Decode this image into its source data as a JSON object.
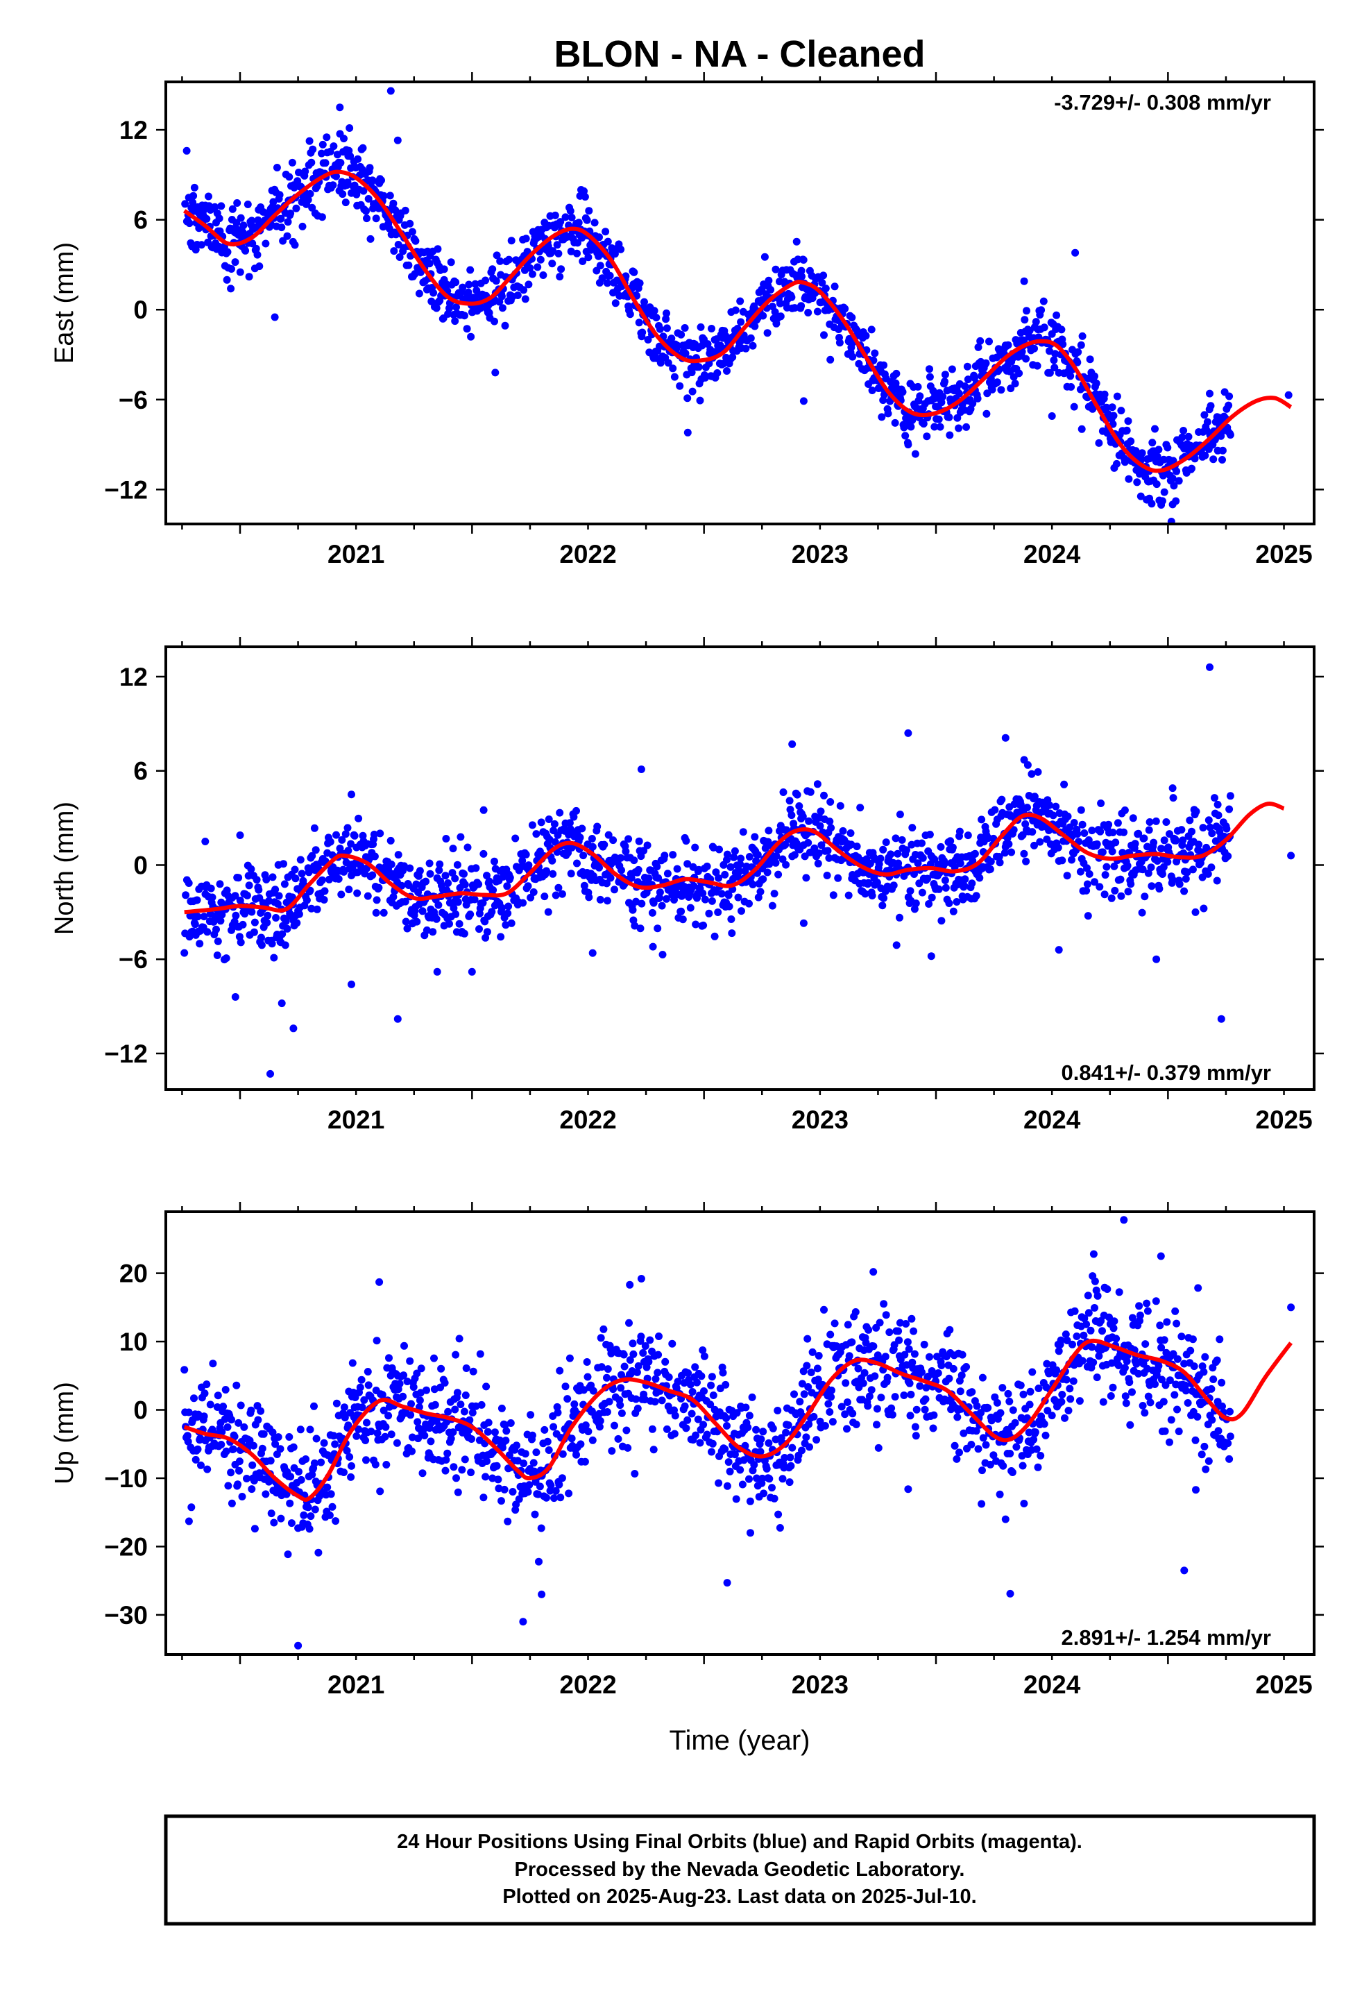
{
  "title": "BLON  - NA - Cleaned",
  "xlabel": "Time (year)",
  "colors": {
    "data": "#0000ff",
    "fit": "#ff0000",
    "frame": "#000000"
  },
  "footer": {
    "lines": [
      "24 Hour Positions Using Final Orbits (blue) and Rapid Orbits (magenta).",
      "Processed by the Nevada Geodetic Laboratory.",
      "Plotted on 2025-Aug-23. Last data on 2025-Jul-10."
    ]
  },
  "chart_data": [
    {
      "type": "scatter",
      "component": "east",
      "ylabel": "East (mm)",
      "rate_label": "-3.729+/- 0.308 mm/yr",
      "rate_position": "top-right",
      "xlim": [
        2020.68,
        2025.63
      ],
      "ylim": [
        -14.3,
        15.2
      ],
      "xticks": [
        2021,
        2022,
        2023,
        2024,
        2025
      ],
      "xtick_labels": [
        "2021",
        "2022",
        "2023",
        "2024",
        "2025"
      ],
      "yticks": [
        12,
        6,
        0,
        -6,
        -12
      ],
      "ytick_labels": [
        "12",
        "6",
        "0",
        "−6",
        "−12"
      ],
      "data_range": [
        2020.76,
        2025.27
      ],
      "scatter_sd": 1.1,
      "fit": [
        [
          2020.76,
          6.6
        ],
        [
          2020.85,
          5.6
        ],
        [
          2020.95,
          4.4
        ],
        [
          2021.05,
          4.8
        ],
        [
          2021.15,
          6.3
        ],
        [
          2021.25,
          7.7
        ],
        [
          2021.35,
          8.8
        ],
        [
          2021.42,
          9.2
        ],
        [
          2021.5,
          8.8
        ],
        [
          2021.6,
          7.3
        ],
        [
          2021.7,
          5.0
        ],
        [
          2021.8,
          2.6
        ],
        [
          2021.9,
          0.8
        ],
        [
          2022.0,
          0.4
        ],
        [
          2022.08,
          0.8
        ],
        [
          2022.15,
          1.9
        ],
        [
          2022.25,
          3.6
        ],
        [
          2022.35,
          4.9
        ],
        [
          2022.43,
          5.4
        ],
        [
          2022.5,
          5.0
        ],
        [
          2022.6,
          3.3
        ],
        [
          2022.7,
          0.6
        ],
        [
          2022.8,
          -1.8
        ],
        [
          2022.9,
          -3.2
        ],
        [
          2022.98,
          -3.4
        ],
        [
          2023.08,
          -2.9
        ],
        [
          2023.18,
          -1.1
        ],
        [
          2023.28,
          0.6
        ],
        [
          2023.38,
          1.7
        ],
        [
          2023.43,
          1.8
        ],
        [
          2023.5,
          1.2
        ],
        [
          2023.6,
          -0.7
        ],
        [
          2023.7,
          -3.2
        ],
        [
          2023.8,
          -5.6
        ],
        [
          2023.9,
          -6.9
        ],
        [
          2024.0,
          -6.9
        ],
        [
          2024.1,
          -6.1
        ],
        [
          2024.2,
          -4.7
        ],
        [
          2024.3,
          -3.2
        ],
        [
          2024.38,
          -2.4
        ],
        [
          2024.45,
          -2.1
        ],
        [
          2024.52,
          -2.4
        ],
        [
          2024.6,
          -3.9
        ],
        [
          2024.7,
          -6.6
        ],
        [
          2024.8,
          -9.1
        ],
        [
          2024.9,
          -10.5
        ],
        [
          2024.98,
          -10.7
        ],
        [
          2025.08,
          -9.9
        ],
        [
          2025.18,
          -8.6
        ],
        [
          2025.28,
          -7.1
        ],
        [
          2025.38,
          -6.1
        ],
        [
          2025.46,
          -5.9
        ],
        [
          2025.53,
          -6.5
        ]
      ],
      "outliers": [
        [
          2020.77,
          10.6
        ],
        [
          2021.15,
          -0.5
        ],
        [
          2021.43,
          13.5
        ],
        [
          2021.65,
          14.6
        ],
        [
          2021.68,
          11.3
        ],
        [
          2022.1,
          -4.2
        ],
        [
          2022.47,
          8.0
        ],
        [
          2022.93,
          -8.2
        ],
        [
          2023.43,
          -6.1
        ],
        [
          2023.42,
          2.6
        ],
        [
          2024.38,
          1.9
        ],
        [
          2024.6,
          3.8
        ],
        [
          2024.5,
          -7.1
        ],
        [
          2025.02,
          -13.0
        ],
        [
          2025.18,
          -5.6
        ],
        [
          2025.52,
          -5.7
        ],
        [
          2021.88,
          2.7
        ],
        [
          2023.88,
          -9.0
        ],
        [
          2024.92,
          -12.6
        ]
      ]
    },
    {
      "type": "scatter",
      "component": "north",
      "ylabel": "North (mm)",
      "rate_label": "0.841+/- 0.379 mm/yr",
      "rate_position": "bottom-right",
      "xlim": [
        2020.68,
        2025.63
      ],
      "ylim": [
        -14.3,
        13.9
      ],
      "xticks": [
        2021,
        2022,
        2023,
        2024,
        2025
      ],
      "xtick_labels": [
        "2021",
        "2022",
        "2023",
        "2024",
        "2025"
      ],
      "yticks": [
        12,
        6,
        0,
        -6,
        -12
      ],
      "ytick_labels": [
        "12",
        "6",
        "0",
        "−6",
        "−12"
      ],
      "data_range": [
        2020.76,
        2025.27
      ],
      "scatter_sd": 1.3,
      "fit": [
        [
          2020.76,
          -3.0
        ],
        [
          2020.9,
          -2.8
        ],
        [
          2021.0,
          -2.6
        ],
        [
          2021.1,
          -2.7
        ],
        [
          2021.2,
          -2.8
        ],
        [
          2021.3,
          -1.2
        ],
        [
          2021.4,
          0.3
        ],
        [
          2021.45,
          0.6
        ],
        [
          2021.55,
          0.1
        ],
        [
          2021.65,
          -1.2
        ],
        [
          2021.75,
          -2.1
        ],
        [
          2021.85,
          -2.0
        ],
        [
          2021.95,
          -1.8
        ],
        [
          2022.05,
          -1.9
        ],
        [
          2022.15,
          -1.8
        ],
        [
          2022.25,
          -0.5
        ],
        [
          2022.35,
          1.0
        ],
        [
          2022.43,
          1.4
        ],
        [
          2022.52,
          0.7
        ],
        [
          2022.62,
          -0.6
        ],
        [
          2022.72,
          -1.4
        ],
        [
          2022.82,
          -1.3
        ],
        [
          2022.92,
          -0.9
        ],
        [
          2023.02,
          -1.1
        ],
        [
          2023.12,
          -1.3
        ],
        [
          2023.22,
          -0.3
        ],
        [
          2023.32,
          1.4
        ],
        [
          2023.4,
          2.2
        ],
        [
          2023.48,
          2.1
        ],
        [
          2023.58,
          0.9
        ],
        [
          2023.68,
          -0.1
        ],
        [
          2023.78,
          -0.6
        ],
        [
          2023.88,
          -0.3
        ],
        [
          2023.98,
          -0.2
        ],
        [
          2024.08,
          -0.4
        ],
        [
          2024.18,
          0.1
        ],
        [
          2024.28,
          1.8
        ],
        [
          2024.37,
          3.1
        ],
        [
          2024.45,
          3.0
        ],
        [
          2024.55,
          1.9
        ],
        [
          2024.65,
          0.8
        ],
        [
          2024.75,
          0.4
        ],
        [
          2024.85,
          0.6
        ],
        [
          2024.95,
          0.7
        ],
        [
          2025.05,
          0.5
        ],
        [
          2025.15,
          0.6
        ],
        [
          2025.25,
          1.6
        ],
        [
          2025.35,
          3.2
        ],
        [
          2025.43,
          3.9
        ],
        [
          2025.5,
          3.6
        ]
      ],
      "outliers": [
        [
          2020.85,
          1.5
        ],
        [
          2020.98,
          -8.4
        ],
        [
          2021.0,
          1.9
        ],
        [
          2021.13,
          -13.3
        ],
        [
          2021.18,
          -8.8
        ],
        [
          2021.23,
          -10.4
        ],
        [
          2021.48,
          4.5
        ],
        [
          2021.48,
          -7.6
        ],
        [
          2021.68,
          -9.8
        ],
        [
          2021.85,
          -6.8
        ],
        [
          2022.05,
          3.5
        ],
        [
          2022.0,
          -6.8
        ],
        [
          2022.73,
          6.1
        ],
        [
          2022.78,
          -5.2
        ],
        [
          2023.38,
          7.7
        ],
        [
          2023.43,
          -3.7
        ],
        [
          2023.88,
          8.4
        ],
        [
          2023.83,
          -5.1
        ],
        [
          2024.3,
          8.1
        ],
        [
          2024.38,
          6.7
        ],
        [
          2024.53,
          -5.4
        ],
        [
          2024.95,
          -6.0
        ],
        [
          2025.02,
          4.9
        ],
        [
          2025.18,
          12.6
        ],
        [
          2025.23,
          -9.8
        ],
        [
          2025.53,
          0.6
        ],
        [
          2022.52,
          -5.6
        ],
        [
          2023.98,
          -5.8
        ]
      ]
    },
    {
      "type": "scatter",
      "component": "up",
      "ylabel": "Up (mm)",
      "rate_label": "2.891+/- 1.254 mm/yr",
      "rate_position": "bottom-right",
      "xlim": [
        2020.68,
        2025.63
      ],
      "ylim": [
        -35.8,
        29.0
      ],
      "xticks": [
        2021,
        2022,
        2023,
        2024,
        2025
      ],
      "xtick_labels": [
        "2021",
        "2022",
        "2023",
        "2024",
        "2025"
      ],
      "yticks": [
        20,
        10,
        0,
        -10,
        -20,
        -30
      ],
      "ytick_labels": [
        "20",
        "10",
        "0",
        "−10",
        "−20",
        "−30"
      ],
      "data_range": [
        2020.76,
        2025.27
      ],
      "scatter_sd": 4.2,
      "fit": [
        [
          2020.76,
          -2.5
        ],
        [
          2020.85,
          -3.5
        ],
        [
          2020.95,
          -4.2
        ],
        [
          2021.05,
          -6.5
        ],
        [
          2021.15,
          -10.0
        ],
        [
          2021.25,
          -12.6
        ],
        [
          2021.3,
          -12.9
        ],
        [
          2021.38,
          -9.5
        ],
        [
          2021.48,
          -3.0
        ],
        [
          2021.6,
          1.3
        ],
        [
          2021.7,
          0.5
        ],
        [
          2021.8,
          -0.5
        ],
        [
          2021.9,
          -1.2
        ],
        [
          2022.0,
          -2.5
        ],
        [
          2022.1,
          -5.5
        ],
        [
          2022.2,
          -9.0
        ],
        [
          2022.25,
          -10.0
        ],
        [
          2022.33,
          -8.5
        ],
        [
          2022.43,
          -2.5
        ],
        [
          2022.55,
          2.5
        ],
        [
          2022.65,
          4.4
        ],
        [
          2022.75,
          4.0
        ],
        [
          2022.85,
          2.8
        ],
        [
          2022.95,
          1.5
        ],
        [
          2023.05,
          -2.0
        ],
        [
          2023.15,
          -5.5
        ],
        [
          2023.25,
          -6.8
        ],
        [
          2023.35,
          -5.0
        ],
        [
          2023.45,
          -0.5
        ],
        [
          2023.55,
          4.5
        ],
        [
          2023.65,
          7.2
        ],
        [
          2023.75,
          6.8
        ],
        [
          2023.85,
          5.3
        ],
        [
          2023.95,
          4.2
        ],
        [
          2024.05,
          2.8
        ],
        [
          2024.15,
          -0.5
        ],
        [
          2024.25,
          -3.8
        ],
        [
          2024.32,
          -4.3
        ],
        [
          2024.4,
          -2.0
        ],
        [
          2024.5,
          3.0
        ],
        [
          2024.6,
          8.2
        ],
        [
          2024.67,
          10.1
        ],
        [
          2024.77,
          9.2
        ],
        [
          2024.87,
          8.0
        ],
        [
          2024.97,
          7.2
        ],
        [
          2025.07,
          5.5
        ],
        [
          2025.17,
          1.5
        ],
        [
          2025.25,
          -1.2
        ],
        [
          2025.32,
          -0.5
        ],
        [
          2025.42,
          4.8
        ],
        [
          2025.53,
          9.8
        ]
      ],
      "outliers": [
        [
          2021.25,
          -34.5
        ],
        [
          2022.22,
          -31.0
        ],
        [
          2023.1,
          -25.3
        ],
        [
          2024.32,
          -26.9
        ],
        [
          2025.07,
          -23.5
        ],
        [
          2021.6,
          18.7
        ],
        [
          2022.73,
          19.2
        ],
        [
          2022.68,
          18.3
        ],
        [
          2023.73,
          20.2
        ],
        [
          2024.68,
          22.8
        ],
        [
          2024.81,
          27.8
        ],
        [
          2024.97,
          22.5
        ],
        [
          2025.53,
          15.0
        ],
        [
          2020.78,
          -16.3
        ],
        [
          2022.3,
          -27.0
        ],
        [
          2023.2,
          -18.0
        ],
        [
          2023.88,
          -11.6
        ],
        [
          2024.3,
          -16.0
        ],
        [
          2025.12,
          -11.7
        ]
      ]
    }
  ]
}
